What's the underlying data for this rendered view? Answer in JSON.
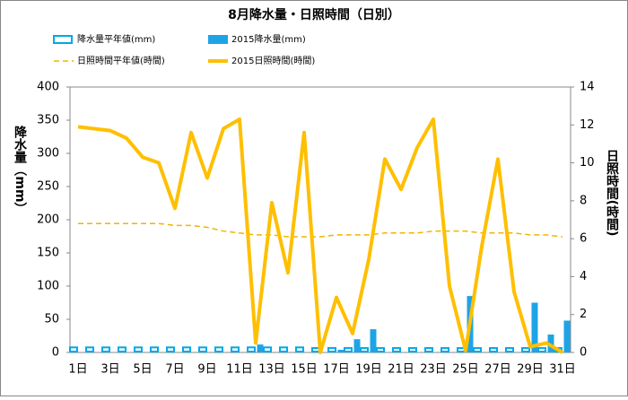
{
  "chart_data": {
    "type": "combo",
    "title": "8月降水量・日照時間（日別）",
    "y_label": "降水量（mm）",
    "y2_label": "日照時間(時間)",
    "categories": [
      "1日",
      null,
      "3日",
      null,
      "5日",
      null,
      "7日",
      null,
      "9日",
      null,
      "11日",
      null,
      "13日",
      null,
      "15日",
      null,
      "17日",
      null,
      "19日",
      null,
      "21日",
      null,
      "23日",
      null,
      "25日",
      null,
      "27日",
      null,
      "29日",
      null,
      "31日"
    ],
    "ylim": [
      0,
      400
    ],
    "yticks": [
      0,
      50,
      100,
      150,
      200,
      250,
      300,
      350,
      400
    ],
    "y2lim": [
      0,
      14
    ],
    "y2ticks": [
      0,
      2,
      4,
      6,
      8,
      10,
      12,
      14
    ],
    "series": [
      {
        "name": "降水量平年値(mm)",
        "type": "bar",
        "hollow": true,
        "color": "#00a8e8",
        "values": [
          9,
          9,
          9,
          9,
          9,
          9,
          9,
          9,
          9,
          9,
          9,
          9,
          9,
          9,
          9,
          8,
          8,
          8,
          8,
          8,
          8,
          8,
          8,
          8,
          8,
          8,
          8,
          8,
          8,
          8,
          8
        ]
      },
      {
        "name": "2015降水量(mm)",
        "type": "bar",
        "hollow": false,
        "color": "#1ea4e6",
        "values": [
          0,
          0,
          0,
          0,
          0,
          0,
          0,
          0,
          0,
          0,
          0,
          12,
          0,
          0,
          0,
          0,
          4,
          20,
          35,
          0,
          0,
          0,
          0,
          0,
          85,
          0,
          0,
          0,
          75,
          27,
          48
        ]
      },
      {
        "name": "日照時間平年値(時間)",
        "type": "line",
        "dashed": true,
        "axis": "y2",
        "color": "#f2b400",
        "values": [
          6.8,
          6.8,
          6.8,
          6.8,
          6.8,
          6.8,
          6.7,
          6.7,
          6.6,
          6.4,
          6.3,
          6.2,
          6.2,
          6.1,
          6.1,
          6.1,
          6.2,
          6.2,
          6.2,
          6.3,
          6.3,
          6.3,
          6.4,
          6.4,
          6.4,
          6.3,
          6.3,
          6.3,
          6.2,
          6.2,
          6.1
        ]
      },
      {
        "name": "2015日照時間(時間)",
        "type": "line",
        "dashed": false,
        "axis": "y2",
        "color": "#ffbf00",
        "values": [
          11.9,
          11.8,
          11.7,
          11.3,
          10.3,
          10.0,
          7.6,
          11.6,
          9.2,
          11.8,
          12.3,
          0.5,
          7.9,
          4.2,
          11.6,
          0,
          2.9,
          1.0,
          4.9,
          10.2,
          8.6,
          10.8,
          12.3,
          3.5,
          0.1,
          5.6,
          10.2,
          3.2,
          0.3,
          0.5,
          0
        ]
      }
    ]
  }
}
